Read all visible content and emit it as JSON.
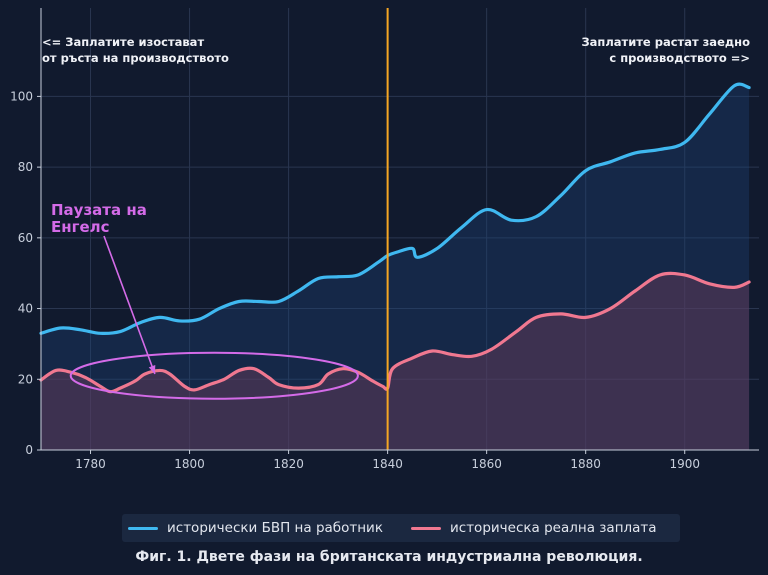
{
  "chart_data": {
    "type": "line",
    "title": "",
    "xlabel": "",
    "ylabel": "",
    "xlim": [
      1770,
      1915
    ],
    "ylim": [
      0,
      125
    ],
    "x_ticks": [
      1780,
      1800,
      1820,
      1840,
      1860,
      1880,
      1900
    ],
    "y_ticks": [
      0,
      20,
      40,
      60,
      80,
      100
    ],
    "grid": true,
    "legend_position": "bottom",
    "series": [
      {
        "name": "исторически БВП на работник",
        "color": "#3fb8f0",
        "fill": true,
        "x": [
          1770,
          1774,
          1778,
          1782,
          1786,
          1790,
          1794,
          1798,
          1802,
          1806,
          1810,
          1814,
          1818,
          1822,
          1826,
          1830,
          1834,
          1838,
          1840,
          1842,
          1845,
          1846,
          1850,
          1855,
          1860,
          1865,
          1870,
          1875,
          1880,
          1885,
          1890,
          1895,
          1900,
          1905,
          1910,
          1913
        ],
        "y": [
          33,
          34.5,
          34,
          33,
          33.5,
          36,
          37.5,
          36.5,
          37,
          40,
          42,
          42,
          42,
          45,
          48.5,
          49,
          49.5,
          53,
          55,
          56,
          57,
          54.5,
          57,
          63,
          68,
          65,
          66,
          72,
          79,
          81.5,
          84,
          85,
          87,
          95,
          103,
          102.5
        ]
      },
      {
        "name": "историческа реална заплата",
        "color": "#f07890",
        "fill": true,
        "x": [
          1770,
          1773,
          1776,
          1779,
          1782,
          1784,
          1786,
          1789,
          1791,
          1794,
          1796,
          1799,
          1801,
          1804,
          1807,
          1810,
          1813,
          1816,
          1818,
          1822,
          1826,
          1828,
          1831,
          1834,
          1837,
          1839,
          1840,
          1841,
          1845,
          1849,
          1853,
          1857,
          1861,
          1866,
          1870,
          1875,
          1880,
          1885,
          1890,
          1895,
          1900,
          1905,
          1910,
          1913
        ],
        "y": [
          19.8,
          22.5,
          22,
          20.5,
          18,
          16.5,
          17.5,
          19.5,
          21.5,
          22.5,
          21.5,
          18,
          17,
          18.5,
          20,
          22.5,
          23,
          20.5,
          18.5,
          17.5,
          18.5,
          21.5,
          23,
          22,
          19.5,
          18,
          17.5,
          23,
          26,
          28,
          27,
          26.5,
          28.5,
          33.5,
          37.5,
          38.5,
          37.5,
          40,
          45,
          49.5,
          49.5,
          47,
          46,
          47.5
        ]
      }
    ],
    "vertical_line": {
      "x": 1840,
      "color": "#f5a623"
    },
    "annotations": {
      "left_note": [
        "<= Заплатите изостават",
        "от ръста на производството"
      ],
      "right_note": [
        "Заплатите растат заедно",
        "с производството =>"
      ],
      "engels_label": [
        "Паузата на",
        "Енгелс"
      ],
      "engels_color": "#d46be8",
      "engels_arrow_target": [
        1793,
        21.5
      ],
      "engels_ellipse": {
        "cx": 1805,
        "cy": 21,
        "rx": 29,
        "ry": 6.5
      }
    }
  },
  "legend": {
    "series1_label": "исторически БВП на работник",
    "series2_label": "историческа реална заплата"
  },
  "caption": "Фиг. 1. Двете фази на британската индустриална революция."
}
